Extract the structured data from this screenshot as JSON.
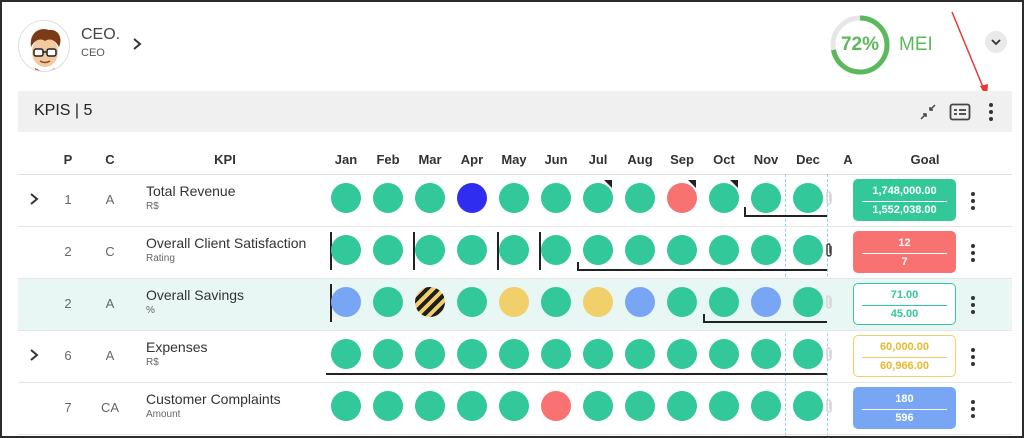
{
  "user": {
    "name": "CEO.",
    "role": "CEO"
  },
  "score": {
    "percent": "72%",
    "value": 0.72,
    "label": "MEI"
  },
  "kpis_header": {
    "title": "KPIS | 5"
  },
  "columns": [
    "P",
    "C",
    "KPI",
    "Jan",
    "Feb",
    "Mar",
    "Apr",
    "May",
    "Jun",
    "Jul",
    "Aug",
    "Sep",
    "Oct",
    "Nov",
    "Dec",
    "A",
    "Goal"
  ],
  "colors": {
    "green": "#32c89a",
    "blue": "#2f2ef0",
    "red": "#f87272",
    "light_blue": "#79a6f4",
    "yellow": "#f1cf6a",
    "gauge": "#5cb85c"
  },
  "rows": [
    {
      "p": "1",
      "c": "A",
      "kpi": "Total Revenue",
      "unit": "R$",
      "expandable": true,
      "months": [
        "green",
        "green",
        "green",
        "blue",
        "green",
        "green",
        "green",
        "green",
        "red",
        "green",
        "green",
        "green"
      ],
      "attachment": false,
      "goal_top": "1,748,000.00",
      "goal_bottom": "1,552,038.00",
      "goal_style": "green-filled"
    },
    {
      "p": "2",
      "c": "C",
      "kpi": "Overall Client Satisfaction",
      "unit": "Rating",
      "expandable": false,
      "months": [
        "green",
        "green",
        "green",
        "green",
        "green",
        "green",
        "green",
        "green",
        "green",
        "green",
        "green",
        "green"
      ],
      "attachment": true,
      "goal_top": "12",
      "goal_bottom": "7",
      "goal_style": "red-filled"
    },
    {
      "p": "2",
      "c": "A",
      "kpi": "Overall Savings",
      "unit": "%",
      "expandable": false,
      "months": [
        "light_blue",
        "green",
        "striped",
        "green",
        "yellow",
        "green",
        "yellow",
        "light_blue",
        "green",
        "green",
        "light_blue",
        "green"
      ],
      "attachment": false,
      "goal_top": "71.00",
      "goal_bottom": "45.00",
      "goal_style": "green-outline"
    },
    {
      "p": "6",
      "c": "A",
      "kpi": "Expenses",
      "unit": "R$",
      "expandable": true,
      "months": [
        "green",
        "green",
        "green",
        "green",
        "green",
        "green",
        "green",
        "green",
        "green",
        "green",
        "green",
        "green"
      ],
      "attachment": false,
      "goal_top": "60,000.00",
      "goal_bottom": "60,966.00",
      "goal_style": "yellow-outline"
    },
    {
      "p": "7",
      "c": "CA",
      "kpi": "Customer Complaints",
      "unit": "Amount",
      "expandable": false,
      "months": [
        "green",
        "green",
        "green",
        "green",
        "green",
        "red",
        "green",
        "green",
        "green",
        "green",
        "green",
        "green"
      ],
      "attachment": false,
      "goal_top": "180",
      "goal_bottom": "596",
      "goal_style": "blue-filled"
    }
  ],
  "icons": [
    "chevron-right-icon",
    "chevron-down-icon",
    "compress-icon",
    "card-view-icon",
    "more-vertical-icon",
    "paperclip-icon"
  ]
}
